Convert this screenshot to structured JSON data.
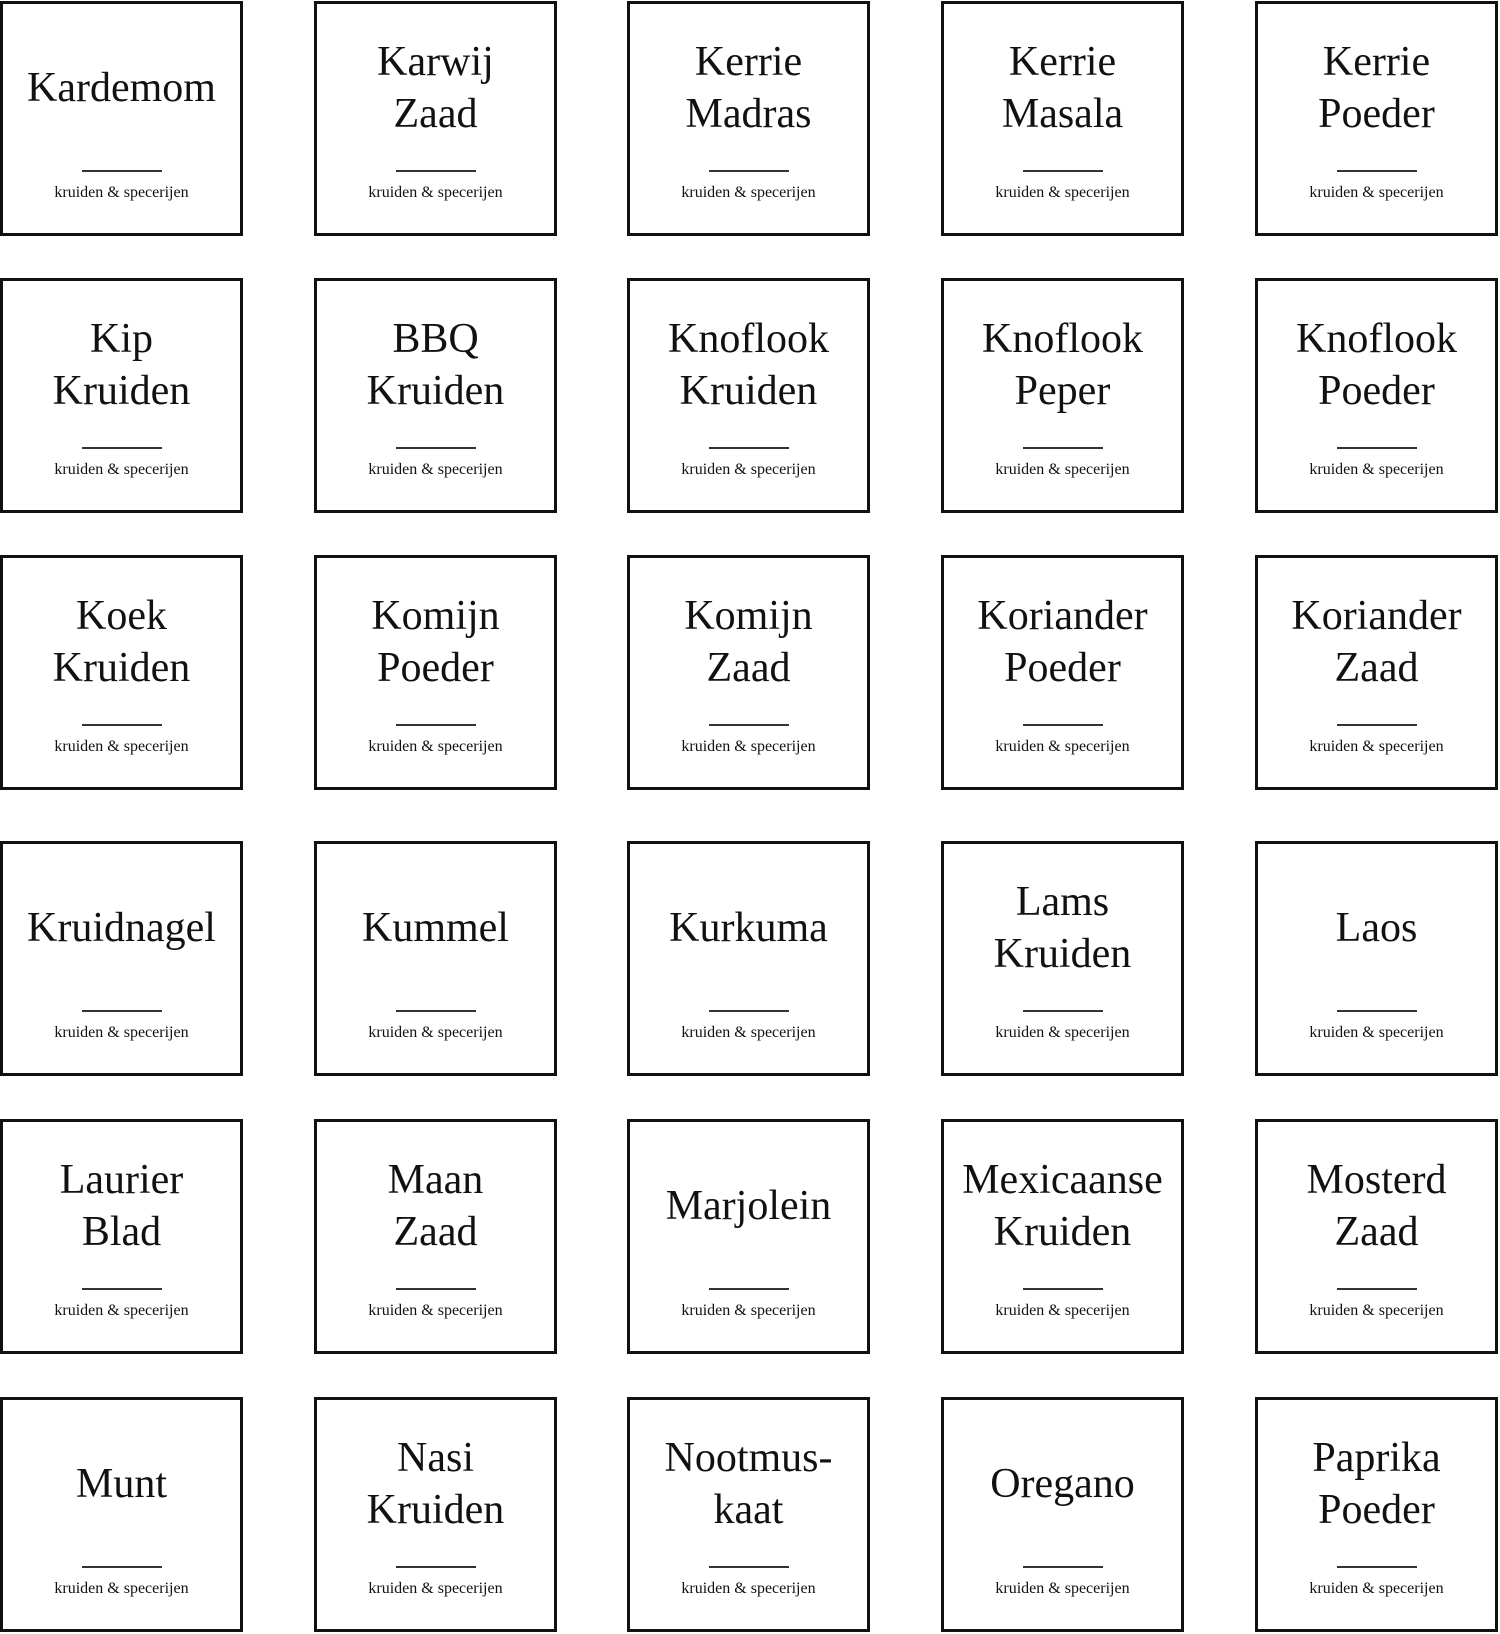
{
  "subtitle": "kruiden & specerijen",
  "labels": [
    {
      "lines": [
        "Kardemom"
      ]
    },
    {
      "lines": [
        "Karwij",
        "Zaad"
      ]
    },
    {
      "lines": [
        "Kerrie",
        "Madras"
      ]
    },
    {
      "lines": [
        "Kerrie",
        "Masala"
      ]
    },
    {
      "lines": [
        "Kerrie",
        "Poeder"
      ]
    },
    {
      "lines": [
        "Kip",
        "Kruiden"
      ]
    },
    {
      "lines": [
        "BBQ",
        "Kruiden"
      ]
    },
    {
      "lines": [
        "Knoflook",
        "Kruiden"
      ]
    },
    {
      "lines": [
        "Knoflook",
        "Peper"
      ]
    },
    {
      "lines": [
        "Knoflook",
        "Poeder"
      ]
    },
    {
      "lines": [
        "Koek",
        "Kruiden"
      ]
    },
    {
      "lines": [
        "Komijn",
        "Poeder"
      ]
    },
    {
      "lines": [
        "Komijn",
        "Zaad"
      ]
    },
    {
      "lines": [
        "Koriander",
        "Poeder"
      ]
    },
    {
      "lines": [
        "Koriander",
        "Zaad"
      ]
    },
    {
      "lines": [
        "Kruidnagel"
      ]
    },
    {
      "lines": [
        "Kummel"
      ]
    },
    {
      "lines": [
        "Kurkuma"
      ]
    },
    {
      "lines": [
        "Lams",
        "Kruiden"
      ]
    },
    {
      "lines": [
        "Laos"
      ]
    },
    {
      "lines": [
        "Laurier",
        "Blad"
      ]
    },
    {
      "lines": [
        "Maan",
        "Zaad"
      ]
    },
    {
      "lines": [
        "Marjolein"
      ]
    },
    {
      "lines": [
        "Mexicaanse",
        "Kruiden"
      ]
    },
    {
      "lines": [
        "Mosterd",
        "Zaad"
      ]
    },
    {
      "lines": [
        "Munt"
      ]
    },
    {
      "lines": [
        "Nasi",
        "Kruiden"
      ]
    },
    {
      "lines": [
        "Nootmus-",
        "kaat"
      ]
    },
    {
      "lines": [
        "Oregano"
      ]
    },
    {
      "lines": [
        "Paprika",
        "Poeder"
      ]
    }
  ]
}
